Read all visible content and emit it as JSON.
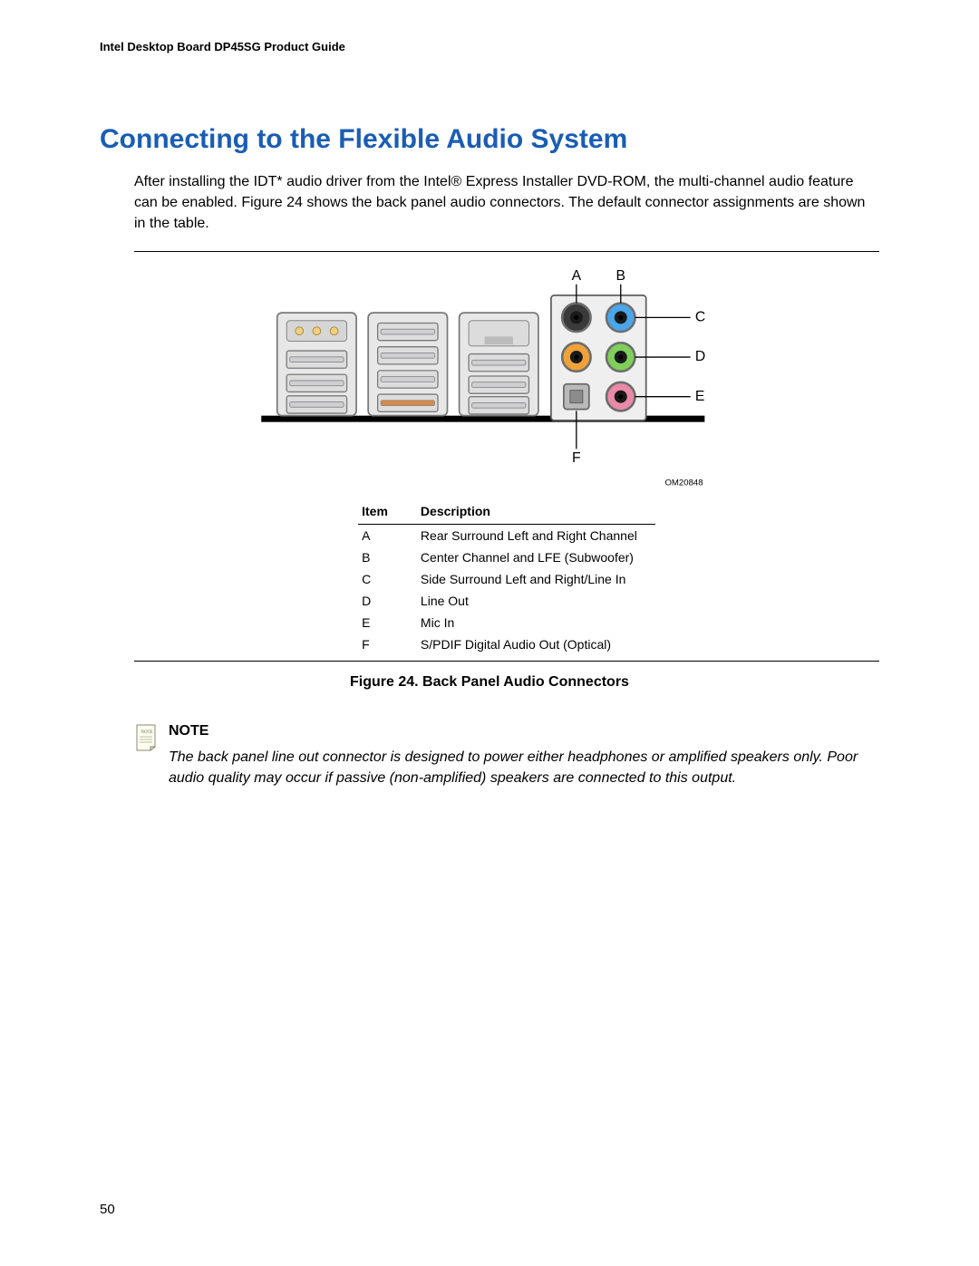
{
  "header": {
    "running": "Intel Desktop Board DP45SG Product Guide"
  },
  "title": "Connecting to the Flexible Audio System",
  "intro": "After installing the IDT* audio driver from the Intel® Express Installer DVD-ROM, the multi-channel audio feature can be enabled.  Figure 24 shows the back panel audio connectors.  The default connector assignments are shown in the table.",
  "figure": {
    "caption": "Figure 24.  Back Panel Audio Connectors",
    "om_id": "OM20848",
    "labels": [
      "A",
      "B",
      "C",
      "D",
      "E",
      "F"
    ],
    "table": {
      "headers": {
        "item": "Item",
        "desc": "Description"
      },
      "rows": [
        {
          "item": "A",
          "desc": "Rear Surround Left and Right Channel"
        },
        {
          "item": "B",
          "desc": "Center Channel and LFE (Subwoofer)"
        },
        {
          "item": "C",
          "desc": "Side Surround Left and Right/Line In"
        },
        {
          "item": "D",
          "desc": "Line Out"
        },
        {
          "item": "E",
          "desc": "Mic In"
        },
        {
          "item": "F",
          "desc": "S/PDIF Digital Audio Out (Optical)"
        }
      ]
    },
    "diagram": {
      "baseplate_color": "#000000",
      "panel_fill": "#e7e7e7",
      "panel_stroke": "#7a7a7a",
      "usb_pale": "#cfcfd2",
      "usb_orange": "#d98a4a",
      "audio_panel_fill": "#efefef",
      "audio_panel_stroke": "#5f5f5f",
      "jack_ring": "#6e6e6e",
      "jacks": [
        {
          "name": "A",
          "fill": "#3a3a3a"
        },
        {
          "name": "B",
          "fill": "#f0a23a"
        },
        {
          "name": "C",
          "fill": "#4aa6e8"
        },
        {
          "name": "D",
          "fill": "#7fcf5a"
        },
        {
          "name": "E",
          "fill": "#e98aa8"
        }
      ],
      "optical_fill": "#b9b9b9",
      "leader_color": "#000000"
    }
  },
  "note": {
    "label": "NOTE",
    "text": "The back panel line out connector is designed to power either headphones or amplified speakers only.  Poor audio quality may occur if passive (non-amplified) speakers are connected to this output."
  },
  "page_number": "50",
  "colors": {
    "heading": "#1a5db4",
    "rule": "#000000",
    "text": "#000000"
  }
}
